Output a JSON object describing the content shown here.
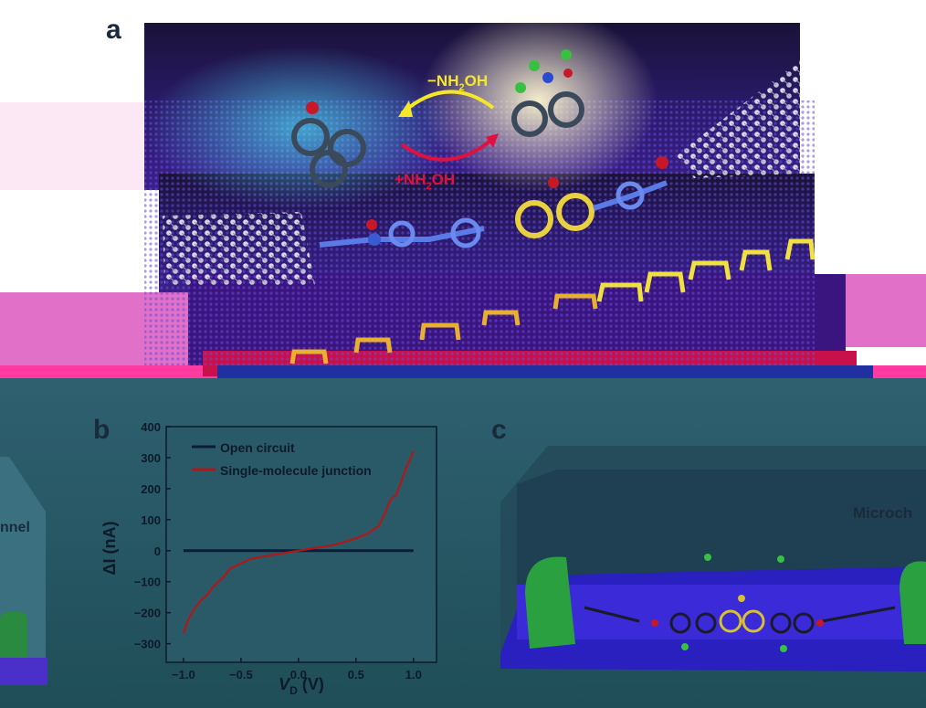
{
  "panels": {
    "a": "a",
    "b": "b",
    "c": "c"
  },
  "panel_a": {
    "reaction_top": "−NH",
    "reaction_top_sub": "2",
    "reaction_top_tail": "OH",
    "reaction_bottom": "+NH",
    "reaction_bottom_sub": "2",
    "reaction_bottom_tail": "OH"
  },
  "panel_c": {
    "label_right": "Microch",
    "label_left": "nnel"
  },
  "colors": {
    "open_circuit": "#0d1a3a",
    "single_molecule": "#b01818",
    "yellow_arrow": "#f5e62a",
    "red_arrow": "#e01040"
  },
  "chart_data": {
    "type": "line",
    "xlabel": "V",
    "xlabel_sub": "D",
    "xlabel_unit": " (V)",
    "ylabel": "ΔI (nA)",
    "xlim": [
      -1.15,
      1.2
    ],
    "ylim": [
      -360,
      400
    ],
    "xticks": [
      -1.0,
      -0.5,
      0.0,
      0.5,
      1.0
    ],
    "xtick_labels": [
      "−1.0",
      "−0.5",
      "0.0",
      "0.5",
      "1.0"
    ],
    "yticks": [
      -300,
      -200,
      -100,
      0,
      100,
      200,
      300,
      400
    ],
    "ytick_labels": [
      "−300",
      "−200",
      "−100",
      "0",
      "100",
      "200",
      "300",
      "400"
    ],
    "series": [
      {
        "name": "Open circuit",
        "x": [
          -1.0,
          1.0
        ],
        "y": [
          0,
          0
        ]
      },
      {
        "name": "Single-molecule junction",
        "x": [
          -1.0,
          -0.95,
          -0.9,
          -0.85,
          -0.8,
          -0.75,
          -0.7,
          -0.65,
          -0.6,
          -0.5,
          -0.4,
          -0.3,
          -0.2,
          -0.1,
          0.0,
          0.1,
          0.2,
          0.3,
          0.4,
          0.5,
          0.6,
          0.7,
          0.75,
          0.8,
          0.85,
          0.9,
          0.95,
          1.0
        ],
        "y": [
          -265,
          -215,
          -185,
          -160,
          -145,
          -120,
          -100,
          -85,
          -60,
          -40,
          -25,
          -18,
          -12,
          -6,
          0,
          6,
          12,
          18,
          28,
          40,
          55,
          80,
          120,
          165,
          180,
          230,
          280,
          320
        ]
      }
    ]
  }
}
